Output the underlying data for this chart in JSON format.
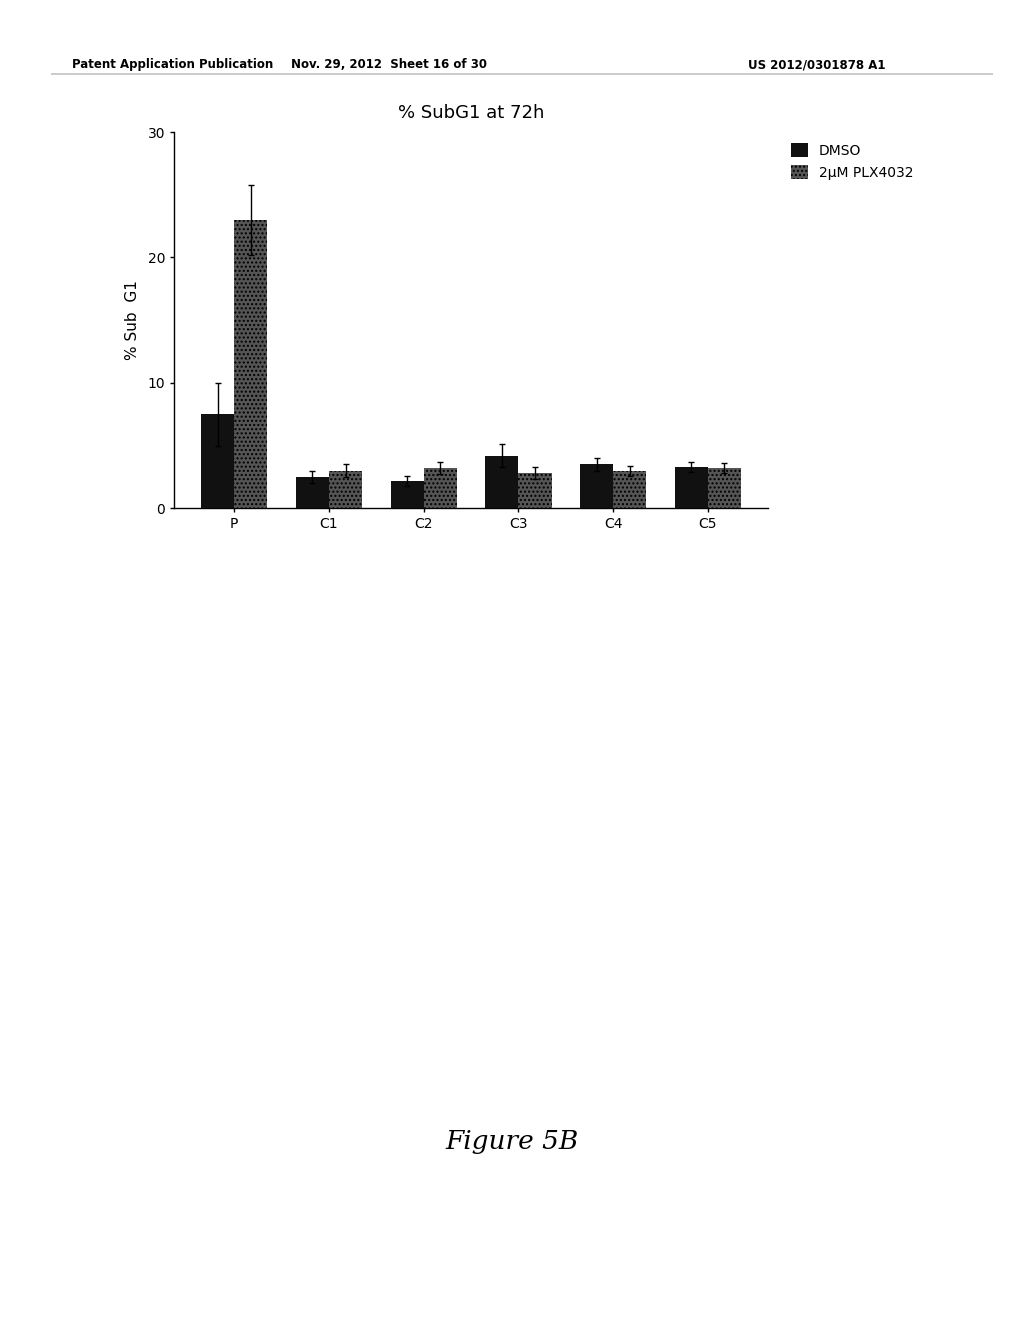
{
  "title": "% SubG1 at 72h",
  "ylabel": "% Sub  G1",
  "categories": [
    "P",
    "C1",
    "C2",
    "C3",
    "C4",
    "C5"
  ],
  "dmso_values": [
    7.5,
    2.5,
    2.2,
    4.2,
    3.5,
    3.3
  ],
  "plx_values": [
    23.0,
    3.0,
    3.2,
    2.8,
    3.0,
    3.2
  ],
  "dmso_errors": [
    2.5,
    0.5,
    0.4,
    0.9,
    0.5,
    0.4
  ],
  "plx_errors": [
    2.8,
    0.5,
    0.5,
    0.5,
    0.4,
    0.4
  ],
  "dmso_color": "#111111",
  "plx_color": "#555555",
  "ylim": [
    0,
    30
  ],
  "yticks": [
    0,
    10,
    20,
    30
  ],
  "legend_dmso": "DMSO",
  "legend_plx": "2μM PLX4032",
  "bar_width": 0.35,
  "title_fontsize": 13,
  "label_fontsize": 11,
  "tick_fontsize": 10,
  "legend_fontsize": 10,
  "background_color": "#ffffff",
  "figure_caption": "Figure 5B",
  "header_left": "Patent Application Publication",
  "header_mid": "Nov. 29, 2012  Sheet 16 of 30",
  "header_right": "US 2012/0301878 A1"
}
